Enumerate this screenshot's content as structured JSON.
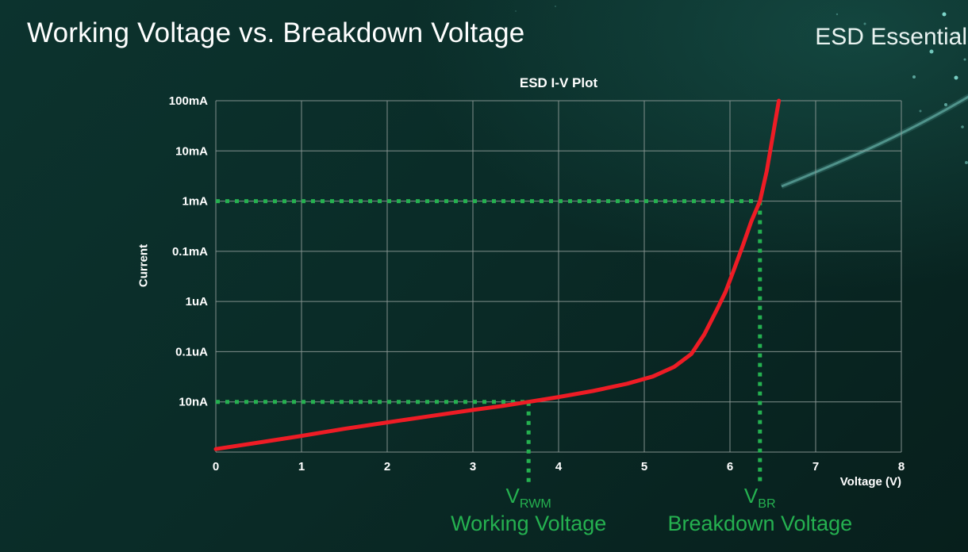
{
  "header": {
    "title": "Working Voltage vs. Breakdown Voltage",
    "brand": "ESD Essentials"
  },
  "chart_data": {
    "type": "line",
    "title": "ESD I-V Plot",
    "xlabel": "Voltage (V)",
    "ylabel": "Current",
    "xlim": [
      0,
      8
    ],
    "x_ticks": [
      0,
      1,
      2,
      3,
      4,
      5,
      6,
      7,
      8
    ],
    "y_scale": "log",
    "y_tick_labels": [
      "100mA",
      "10mA",
      "1mA",
      "0.1mA",
      "1uA",
      "0.1uA",
      "10nA"
    ],
    "y_tick_currents_A": [
      0.1,
      0.01,
      0.001,
      0.0001,
      1e-06,
      1e-07,
      1e-08
    ],
    "y_bottom_A": 1e-09,
    "grid": true,
    "grid_color": "#8e9a97",
    "series": [
      {
        "name": "ESD I-V curve",
        "color": "#ee1c25",
        "points": [
          [
            0,
            1.15e-09
          ],
          [
            0.5,
            1.55e-09
          ],
          [
            1,
            2.1e-09
          ],
          [
            1.5,
            2.9e-09
          ],
          [
            2,
            3.9e-09
          ],
          [
            2.5,
            5.2e-09
          ],
          [
            3,
            6.9e-09
          ],
          [
            3.35,
            8.3e-09
          ],
          [
            3.65,
            1e-08
          ],
          [
            4,
            1.25e-08
          ],
          [
            4.4,
            1.65e-08
          ],
          [
            4.8,
            2.3e-08
          ],
          [
            5.1,
            3.2e-08
          ],
          [
            5.35,
            5e-08
          ],
          [
            5.55,
            9e-08
          ],
          [
            5.7,
            2.2e-07
          ],
          [
            5.85,
            7e-07
          ],
          [
            5.95,
            2.5e-06
          ],
          [
            6.05,
            2e-05
          ],
          [
            6.15,
            0.00013
          ],
          [
            6.25,
            0.0004
          ],
          [
            6.35,
            0.001
          ],
          [
            6.43,
            0.004
          ],
          [
            6.5,
            0.02
          ],
          [
            6.57,
            0.1
          ]
        ]
      }
    ],
    "annotations": {
      "color": "#25b150",
      "v_rwm": {
        "x": 3.65,
        "current_A": 1e-08,
        "label_main": "V",
        "label_sub": "RWM",
        "caption": "Working Voltage"
      },
      "v_br": {
        "x": 6.35,
        "current_A": 0.001,
        "label_main": "V",
        "label_sub": "BR",
        "caption": "Breakdown Voltage"
      }
    }
  }
}
